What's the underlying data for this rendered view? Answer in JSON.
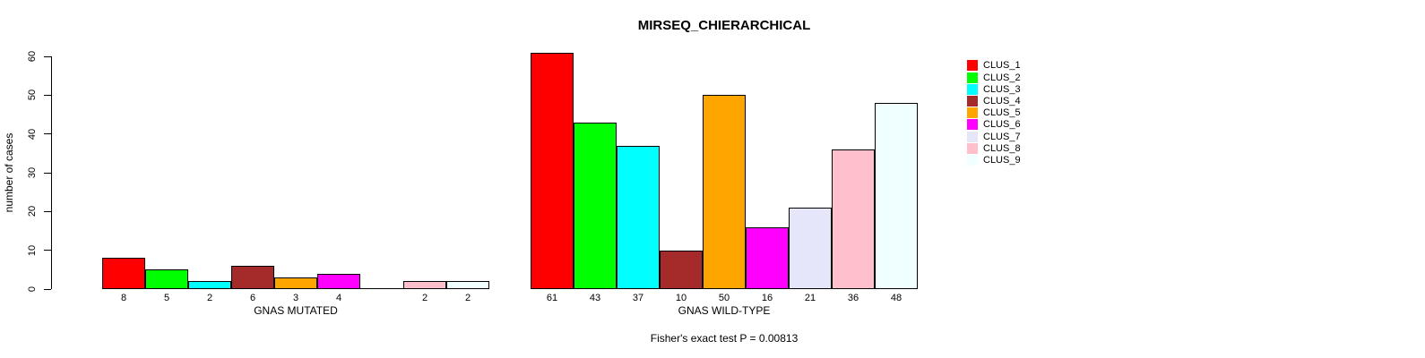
{
  "title": "MIRSEQ_CHIERARCHICAL",
  "subtitle": "Fisher's exact test P = 0.00813",
  "y_axis": {
    "label": "number of cases",
    "ticks": [
      0,
      10,
      20,
      30,
      40,
      50,
      60
    ]
  },
  "legend": {
    "items": [
      {
        "label": "CLUS_1",
        "color": "#FF0000"
      },
      {
        "label": "CLUS_2",
        "color": "#00FF00"
      },
      {
        "label": "CLUS_3",
        "color": "#00FFFF"
      },
      {
        "label": "CLUS_4",
        "color": "#A52A2A"
      },
      {
        "label": "CLUS_5",
        "color": "#FFA500"
      },
      {
        "label": "CLUS_6",
        "color": "#FF00FF"
      },
      {
        "label": "CLUS_7",
        "color": "#E6E6FA"
      },
      {
        "label": "CLUS_8",
        "color": "#FFC0CB"
      },
      {
        "label": "CLUS_9",
        "color": "#F0FFFF"
      }
    ]
  },
  "chart_data": {
    "type": "bar",
    "title": "MIRSEQ_CHIERARCHICAL",
    "ylabel": "number of cases",
    "ylim": [
      0,
      60
    ],
    "grid": false,
    "legend_position": "top-right",
    "annotation": "Fisher's exact test P = 0.00813",
    "series_names": [
      "CLUS_1",
      "CLUS_2",
      "CLUS_3",
      "CLUS_4",
      "CLUS_5",
      "CLUS_6",
      "CLUS_7",
      "CLUS_8",
      "CLUS_9"
    ],
    "colors": [
      "#FF0000",
      "#00FF00",
      "#00FFFF",
      "#A52A2A",
      "#FFA500",
      "#FF00FF",
      "#E6E6FA",
      "#FFC0CB",
      "#F0FFFF"
    ],
    "groups": [
      {
        "label": "GNAS MUTATED",
        "values": [
          8,
          5,
          2,
          6,
          3,
          4,
          0,
          2,
          2
        ]
      },
      {
        "label": "GNAS WILD-TYPE",
        "values": [
          61,
          43,
          37,
          10,
          50,
          16,
          21,
          36,
          48
        ]
      }
    ]
  }
}
